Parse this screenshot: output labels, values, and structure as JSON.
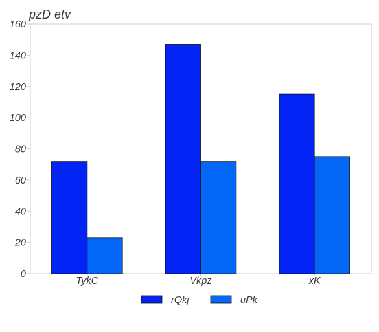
{
  "chart_data": {
    "type": "bar",
    "title": "pzD   etv",
    "xlabel": "",
    "ylabel": "",
    "ylim": [
      0,
      160
    ],
    "yticks": [
      0,
      20,
      40,
      60,
      80,
      100,
      120,
      140,
      160
    ],
    "categories": [
      "TykC",
      "Vkpz",
      "xK"
    ],
    "series": [
      {
        "name": "rQkj",
        "values": [
          72,
          147,
          115
        ],
        "color": "#0324f5"
      },
      {
        "name": "uPk",
        "values": [
          23,
          72,
          75
        ],
        "color": "#0567f7"
      }
    ],
    "grid": false,
    "legend_position": "bottom"
  }
}
